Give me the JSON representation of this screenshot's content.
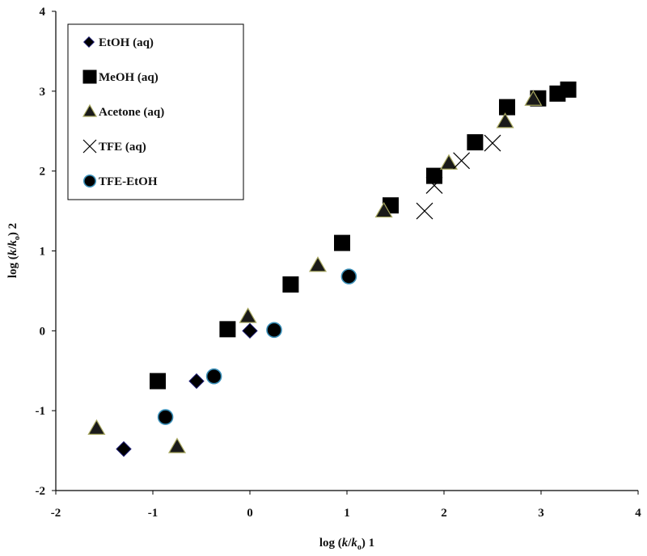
{
  "chart_data": {
    "type": "scatter",
    "title": "",
    "xlabel": {
      "prefix": "log (",
      "k": "k",
      "slash": "/",
      "ko": "k",
      "sub": "o",
      "suffix": ") 1"
    },
    "ylabel": {
      "prefix": "log (",
      "k": "k",
      "slash": "/",
      "ko": "k",
      "sub": "o",
      "suffix": ") 2"
    },
    "xlim": [
      -2,
      4
    ],
    "ylim": [
      -2,
      4
    ],
    "xticks": [
      "-2",
      "-1",
      "0",
      "1",
      "2",
      "3",
      "4"
    ],
    "yticks": [
      "-2",
      "-1",
      "0",
      "1",
      "2",
      "3",
      "4"
    ],
    "grid": false,
    "legend_position": "top-left",
    "colors": {
      "marker_fill": "#000000",
      "acetone_fill": "#1a1a1a",
      "acetone_edge": "#a8a860",
      "circle_edge": "#3a8fb8",
      "diamond_edge": "#1a1a70",
      "axis": "#000000"
    },
    "series": [
      {
        "name": "EtOH (aq)",
        "marker": "diamond",
        "points": [
          [
            -1.3,
            -1.48
          ],
          [
            -0.55,
            -0.63
          ],
          [
            0.0,
            0.0
          ]
        ]
      },
      {
        "name": "MeOH (aq)",
        "marker": "square",
        "points": [
          [
            -0.95,
            -0.63
          ],
          [
            -0.23,
            0.02
          ],
          [
            0.42,
            0.58
          ],
          [
            0.95,
            1.1
          ],
          [
            1.45,
            1.57
          ],
          [
            1.9,
            1.94
          ],
          [
            2.32,
            2.36
          ],
          [
            2.65,
            2.8
          ],
          [
            2.97,
            2.91
          ],
          [
            3.17,
            2.97
          ],
          [
            3.28,
            3.02
          ]
        ]
      },
      {
        "name": "Acetone (aq)",
        "marker": "triangle",
        "points": [
          [
            -1.58,
            -1.22
          ],
          [
            -0.75,
            -1.45
          ],
          [
            -0.02,
            0.18
          ],
          [
            0.7,
            0.82
          ],
          [
            1.38,
            1.5
          ],
          [
            2.05,
            2.1
          ],
          [
            2.63,
            2.62
          ],
          [
            2.92,
            2.9
          ]
        ]
      },
      {
        "name": "TFE (aq)",
        "marker": "cross",
        "points": [
          [
            1.8,
            1.5
          ],
          [
            1.9,
            1.82
          ],
          [
            2.18,
            2.13
          ],
          [
            2.5,
            2.35
          ]
        ]
      },
      {
        "name": "TFE-EtOH",
        "marker": "circle",
        "points": [
          [
            -0.87,
            -1.08
          ],
          [
            -0.37,
            -0.57
          ],
          [
            0.25,
            0.01
          ],
          [
            1.02,
            0.68
          ]
        ]
      }
    ]
  }
}
